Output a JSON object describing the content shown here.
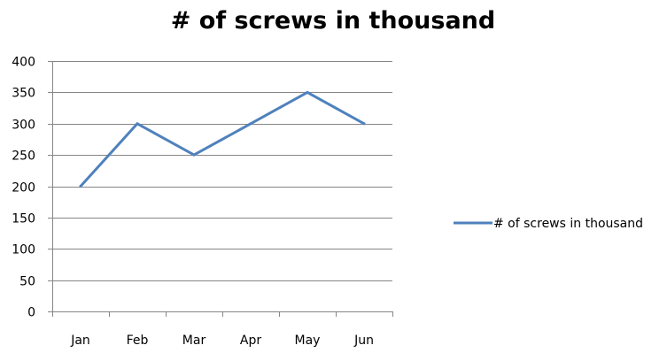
{
  "chart_data": {
    "type": "line",
    "title": "# of screws in thousand",
    "categories": [
      "Jan",
      "Feb",
      "Mar",
      "Apr",
      "May",
      "Jun"
    ],
    "series": [
      {
        "name": "# of screws in thousand",
        "values": [
          200,
          300,
          250,
          300,
          350,
          300
        ],
        "color": "#4F81BD"
      }
    ],
    "ylim": [
      0,
      400
    ],
    "yticks": [
      0,
      50,
      100,
      150,
      200,
      250,
      300,
      350,
      400
    ],
    "grid": true,
    "legend_position": "right",
    "colors": {
      "gridline": "#868686",
      "axis": "#868686",
      "text": "#000000"
    }
  }
}
